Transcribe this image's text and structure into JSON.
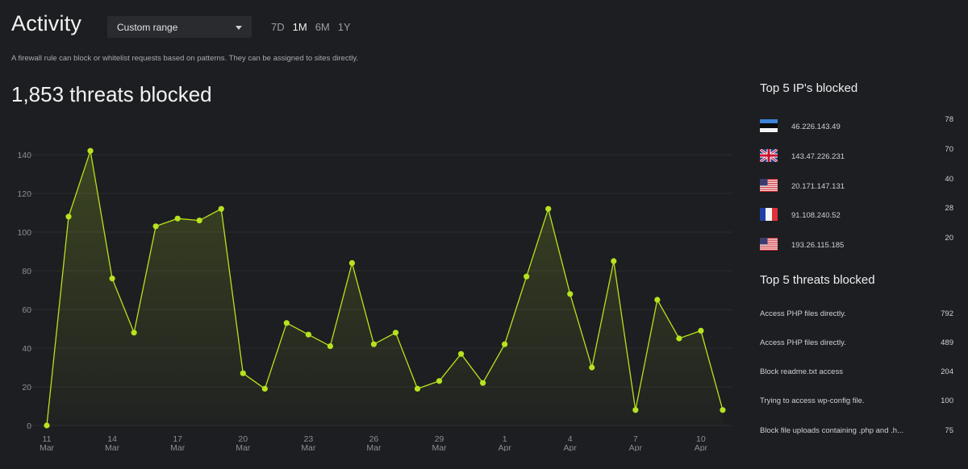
{
  "header": {
    "title": "Activity",
    "range_select": "Custom range",
    "periods": [
      "7D",
      "1M",
      "6M",
      "1Y"
    ],
    "active_period": "1M",
    "description": "A firewall rule can block or whitelist requests based on patterns. They can be assigned to sites directly."
  },
  "summary": {
    "headline": "1,853 threats blocked"
  },
  "top_ips": {
    "title": "Top 5 IP's blocked",
    "items": [
      {
        "flag": "estonia-flag",
        "ip": "46.226.143.49",
        "count": "78"
      },
      {
        "flag": "uk-flag",
        "ip": "143.47.226.231",
        "count": "70"
      },
      {
        "flag": "us-flag",
        "ip": "20.171.147.131",
        "count": "40"
      },
      {
        "flag": "france-flag",
        "ip": "91.108.240.52",
        "count": "28"
      },
      {
        "flag": "us-flag",
        "ip": "193.26.115.185",
        "count": "20"
      }
    ]
  },
  "top_threats": {
    "title": "Top 5 threats blocked",
    "items": [
      {
        "name": "Access PHP files directly.",
        "count": "792"
      },
      {
        "name": "Access PHP files directly.",
        "count": "489"
      },
      {
        "name": "Block readme.txt access",
        "count": "204"
      },
      {
        "name": "Trying to access wp-config file.",
        "count": "100"
      },
      {
        "name": "Block file uploads containing .php and .h...",
        "count": "75"
      }
    ]
  },
  "colors": {
    "accent": "#b7e21f",
    "background": "#1d1e21",
    "grid": "#2b2c30"
  },
  "chart_data": {
    "type": "area",
    "title": "",
    "xlabel": "",
    "ylabel": "",
    "ylim": [
      0,
      150
    ],
    "yticks": [
      0,
      20,
      40,
      60,
      80,
      100,
      120,
      140
    ],
    "x_tick_labels": [
      {
        "index": 0,
        "day": "11",
        "month": "Mar"
      },
      {
        "index": 3,
        "day": "14",
        "month": "Mar"
      },
      {
        "index": 6,
        "day": "17",
        "month": "Mar"
      },
      {
        "index": 9,
        "day": "20",
        "month": "Mar"
      },
      {
        "index": 12,
        "day": "23",
        "month": "Mar"
      },
      {
        "index": 15,
        "day": "26",
        "month": "Mar"
      },
      {
        "index": 18,
        "day": "29",
        "month": "Mar"
      },
      {
        "index": 21,
        "day": "1",
        "month": "Apr"
      },
      {
        "index": 24,
        "day": "4",
        "month": "Apr"
      },
      {
        "index": 27,
        "day": "7",
        "month": "Apr"
      },
      {
        "index": 30,
        "day": "10",
        "month": "Apr"
      }
    ],
    "series": [
      {
        "name": "threats blocked",
        "values": [
          0,
          108,
          142,
          76,
          48,
          103,
          107,
          106,
          112,
          27,
          19,
          53,
          47,
          41,
          84,
          42,
          48,
          19,
          23,
          37,
          22,
          42,
          77,
          112,
          68,
          30,
          85,
          8,
          65,
          45,
          49,
          8
        ]
      }
    ]
  }
}
